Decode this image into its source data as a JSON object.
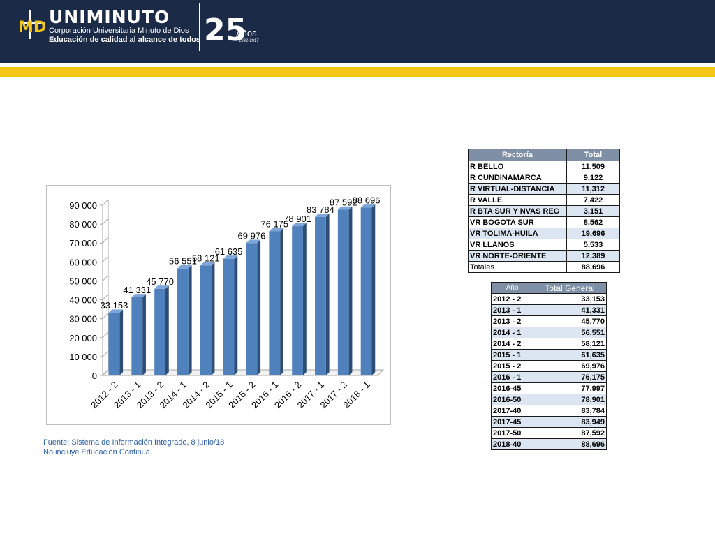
{
  "header": {
    "logo_md": "MD",
    "brand_name": "UNIMINUTO",
    "subtitle_1": "Corporación Universitaria Minuto de Dios",
    "subtitle_2": "Educación de calidad al alcance de todos",
    "anniversary_number": "25",
    "anniversary_label": "Años",
    "anniversary_years": "1992-2017",
    "colors": {
      "navy": "#1b2a47",
      "gold": "#f3c617"
    }
  },
  "chart_data": {
    "type": "bar",
    "categories": [
      "2012 - 2",
      "2013 - 1",
      "2013 - 2",
      "2014 - 1",
      "2014 - 2",
      "2015 - 1",
      "2015 - 2",
      "2016 - 1",
      "2016 - 2",
      "2017 - 1",
      "2017 - 2",
      "2018 - 1"
    ],
    "values": [
      33153,
      41331,
      45770,
      56551,
      58121,
      61635,
      69976,
      76175,
      78901,
      83784,
      87592,
      88696
    ],
    "data_labels": [
      "33 153",
      "41 331",
      "45 770",
      "56 551",
      "58 121",
      "61 635",
      "69 976",
      "76 175",
      "78 901",
      "83 784",
      "87 592",
      "88 696"
    ],
    "y_ticks": [
      0,
      10000,
      20000,
      30000,
      40000,
      50000,
      60000,
      70000,
      80000,
      90000
    ],
    "y_tick_labels": [
      "0",
      "10 000",
      "20 000",
      "30 000",
      "40 000",
      "50 000",
      "60 000",
      "70 000",
      "80 000",
      "90 000"
    ],
    "ylim": [
      0,
      90000
    ],
    "grid": false,
    "legend": "none",
    "bar_color": "#4f81bd",
    "title": "",
    "xlabel": "",
    "ylabel": ""
  },
  "source": {
    "line1": "Fuente: Sistema de Información Integrado, 8 junio/18",
    "line2": "No incluye  Educación Continua."
  },
  "rectoria_table": {
    "headers": [
      "Rectoría",
      "Total"
    ],
    "rows": [
      [
        "R BELLO",
        "11,509"
      ],
      [
        "R CUNDINAMARCA",
        "9,122"
      ],
      [
        "R VIRTUAL-DISTANCIA",
        "11,312"
      ],
      [
        "R VALLE",
        "7,422"
      ],
      [
        "R BTA SUR Y NVAS REG",
        "3,151"
      ],
      [
        "VR BOGOTA SUR",
        "8,562"
      ],
      [
        "VR TOLIMA-HUILA",
        "19,696"
      ],
      [
        "VR LLANOS",
        "5,533"
      ],
      [
        "VR NORTE-ORIENTE",
        "12,389"
      ]
    ],
    "total_label": "Totales",
    "total_value": "88,696"
  },
  "year_table": {
    "headers": [
      "Año",
      "Total General"
    ],
    "rows": [
      [
        "2012 - 2",
        "33,153"
      ],
      [
        "2013 - 1",
        "41,331"
      ],
      [
        "2013 - 2",
        "45,770"
      ],
      [
        "2014 - 1",
        "56,551"
      ],
      [
        "2014 - 2",
        "58,121"
      ],
      [
        "2015 - 1",
        "61,635"
      ],
      [
        "2015 - 2",
        "69,976"
      ],
      [
        "2016 - 1",
        "76,175"
      ],
      [
        "2016-45",
        "77,997"
      ],
      [
        "2016-50",
        "78,901"
      ],
      [
        "2017-40",
        "83,784"
      ],
      [
        "2017-45",
        "83,949"
      ],
      [
        "2017-50",
        "87,592"
      ],
      [
        "2018-40",
        "88,696"
      ]
    ]
  }
}
